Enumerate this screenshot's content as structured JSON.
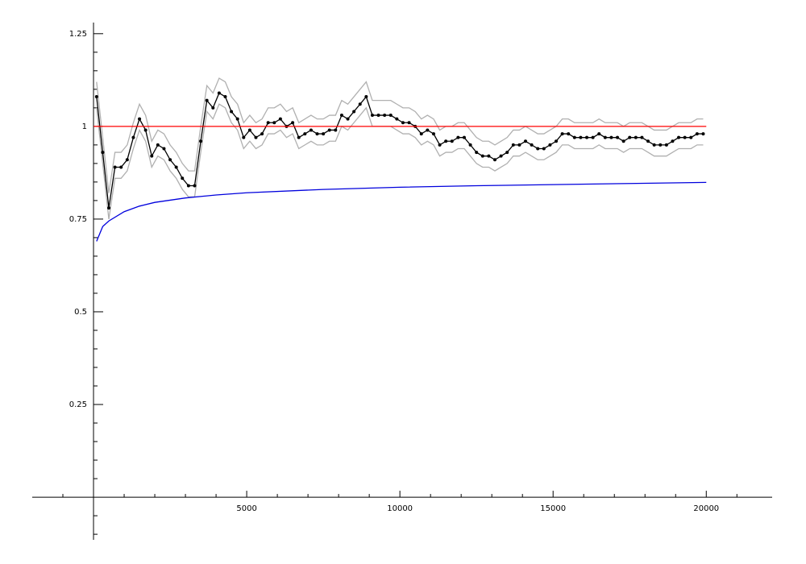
{
  "chart_data": {
    "type": "line",
    "x": [
      100,
      300,
      500,
      700,
      900,
      1100,
      1300,
      1500,
      1700,
      1900,
      2100,
      2300,
      2500,
      2700,
      2900,
      3100,
      3300,
      3500,
      3700,
      3900,
      4100,
      4300,
      4500,
      4700,
      4900,
      5100,
      5300,
      5500,
      5700,
      5900,
      6100,
      6300,
      6500,
      6700,
      6900,
      7100,
      7300,
      7500,
      7700,
      7900,
      8100,
      8300,
      8500,
      8700,
      8900,
      9100,
      9300,
      9500,
      9700,
      9900,
      10100,
      10300,
      10500,
      10700,
      10900,
      11100,
      11300,
      11500,
      11700,
      11900,
      12100,
      12300,
      12500,
      12700,
      12900,
      13100,
      13300,
      13500,
      13700,
      13900,
      14100,
      14300,
      14500,
      14700,
      14900,
      15100,
      15300,
      15500,
      15700,
      15900,
      16100,
      16300,
      16500,
      16700,
      16900,
      17100,
      17300,
      17500,
      17700,
      17900,
      18100,
      18300,
      18500,
      18700,
      18900,
      19100,
      19300,
      19500,
      19700,
      19900
    ],
    "series": [
      {
        "color": "#b0b0b0",
        "values": [
          1.12,
          0.97,
          0.82,
          0.93,
          0.93,
          0.95,
          1.01,
          1.06,
          1.03,
          0.96,
          0.99,
          0.98,
          0.95,
          0.93,
          0.9,
          0.88,
          0.88,
          1.0,
          1.11,
          1.09,
          1.13,
          1.12,
          1.08,
          1.06,
          1.01,
          1.03,
          1.01,
          1.02,
          1.05,
          1.05,
          1.06,
          1.04,
          1.05,
          1.01,
          1.02,
          1.03,
          1.02,
          1.02,
          1.03,
          1.03,
          1.07,
          1.06,
          1.08,
          1.1,
          1.12,
          1.07,
          1.07,
          1.07,
          1.07,
          1.06,
          1.05,
          1.05,
          1.04,
          1.02,
          1.03,
          1.02,
          0.99,
          1.0,
          1.0,
          1.01,
          1.01,
          0.99,
          0.97,
          0.96,
          0.96,
          0.95,
          0.96,
          0.97,
          0.99,
          0.99,
          1.0,
          0.99,
          0.98,
          0.98,
          0.99,
          1.0,
          1.02,
          1.02,
          1.01,
          1.01,
          1.01,
          1.01,
          1.02,
          1.01,
          1.01,
          1.01,
          1.0,
          1.01,
          1.01,
          1.01,
          1.0,
          0.99,
          0.99,
          0.99,
          1.0,
          1.01,
          1.01,
          1.01,
          1.02,
          1.02
        ]
      },
      {
        "color": "#b0b0b0",
        "values": [
          1.05,
          0.9,
          0.75,
          0.86,
          0.86,
          0.88,
          0.94,
          0.99,
          0.96,
          0.89,
          0.92,
          0.91,
          0.88,
          0.86,
          0.83,
          0.81,
          0.81,
          0.93,
          1.04,
          1.02,
          1.06,
          1.05,
          1.01,
          0.99,
          0.94,
          0.96,
          0.94,
          0.95,
          0.98,
          0.98,
          0.99,
          0.97,
          0.98,
          0.94,
          0.95,
          0.96,
          0.95,
          0.95,
          0.96,
          0.96,
          1.0,
          0.99,
          1.01,
          1.03,
          1.05,
          1.0,
          1.0,
          1.0,
          1.0,
          0.99,
          0.98,
          0.98,
          0.97,
          0.95,
          0.96,
          0.95,
          0.92,
          0.93,
          0.93,
          0.94,
          0.94,
          0.92,
          0.9,
          0.89,
          0.89,
          0.88,
          0.89,
          0.9,
          0.92,
          0.92,
          0.93,
          0.92,
          0.91,
          0.91,
          0.92,
          0.93,
          0.95,
          0.95,
          0.94,
          0.94,
          0.94,
          0.94,
          0.95,
          0.94,
          0.94,
          0.94,
          0.93,
          0.94,
          0.94,
          0.94,
          0.93,
          0.92,
          0.92,
          0.92,
          0.93,
          0.94,
          0.94,
          0.94,
          0.95,
          0.95
        ]
      },
      {
        "color": "#000000",
        "marker": true,
        "values": [
          1.08,
          0.93,
          0.78,
          0.89,
          0.89,
          0.91,
          0.97,
          1.02,
          0.99,
          0.92,
          0.95,
          0.94,
          0.91,
          0.89,
          0.86,
          0.84,
          0.84,
          0.96,
          1.07,
          1.05,
          1.09,
          1.08,
          1.04,
          1.02,
          0.97,
          0.99,
          0.97,
          0.98,
          1.01,
          1.01,
          1.02,
          1.0,
          1.01,
          0.97,
          0.98,
          0.99,
          0.98,
          0.98,
          0.99,
          0.99,
          1.03,
          1.02,
          1.04,
          1.06,
          1.08,
          1.03,
          1.03,
          1.03,
          1.03,
          1.02,
          1.01,
          1.01,
          1.0,
          0.98,
          0.99,
          0.98,
          0.95,
          0.96,
          0.96,
          0.97,
          0.97,
          0.95,
          0.93,
          0.92,
          0.92,
          0.91,
          0.92,
          0.93,
          0.95,
          0.95,
          0.96,
          0.95,
          0.94,
          0.94,
          0.95,
          0.96,
          0.98,
          0.98,
          0.97,
          0.97,
          0.97,
          0.97,
          0.98,
          0.97,
          0.97,
          0.97,
          0.96,
          0.97,
          0.97,
          0.97,
          0.96,
          0.95,
          0.95,
          0.95,
          0.96,
          0.97,
          0.97,
          0.97,
          0.98,
          0.98
        ]
      },
      {
        "color": "#ff0000",
        "x": [
          0,
          20000
        ],
        "values": [
          1,
          1
        ]
      },
      {
        "color": "#0000dd",
        "x": [
          100,
          300,
          500,
          1000,
          1500,
          2000,
          3000,
          4000,
          5000,
          7500,
          10000,
          12500,
          15000,
          17500,
          20000
        ],
        "values": [
          0.69,
          0.73,
          0.745,
          0.77,
          0.785,
          0.795,
          0.807,
          0.815,
          0.821,
          0.83,
          0.836,
          0.84,
          0.843,
          0.846,
          0.849
        ]
      }
    ],
    "xlim": [
      -2000,
      22150
    ],
    "ylim": [
      -0.115,
      1.28
    ],
    "xticks": [
      5000,
      10000,
      15000,
      20000
    ],
    "yticks": [
      0.25,
      0.5,
      0.75,
      1,
      1.25
    ],
    "xminorticks": [
      -1000,
      1000,
      2000,
      3000,
      4000,
      6000,
      7000,
      8000,
      9000,
      11000,
      12000,
      13000,
      14000,
      16000,
      17000,
      18000,
      19000,
      21000
    ],
    "yminorticks": [
      -0.1,
      -0.05,
      0.05,
      0.1,
      0.15,
      0.2,
      0.3,
      0.35,
      0.4,
      0.45,
      0.55,
      0.6,
      0.65,
      0.7,
      0.8,
      0.85,
      0.9,
      0.95,
      1.05,
      1.1,
      1.15,
      1.2
    ]
  }
}
